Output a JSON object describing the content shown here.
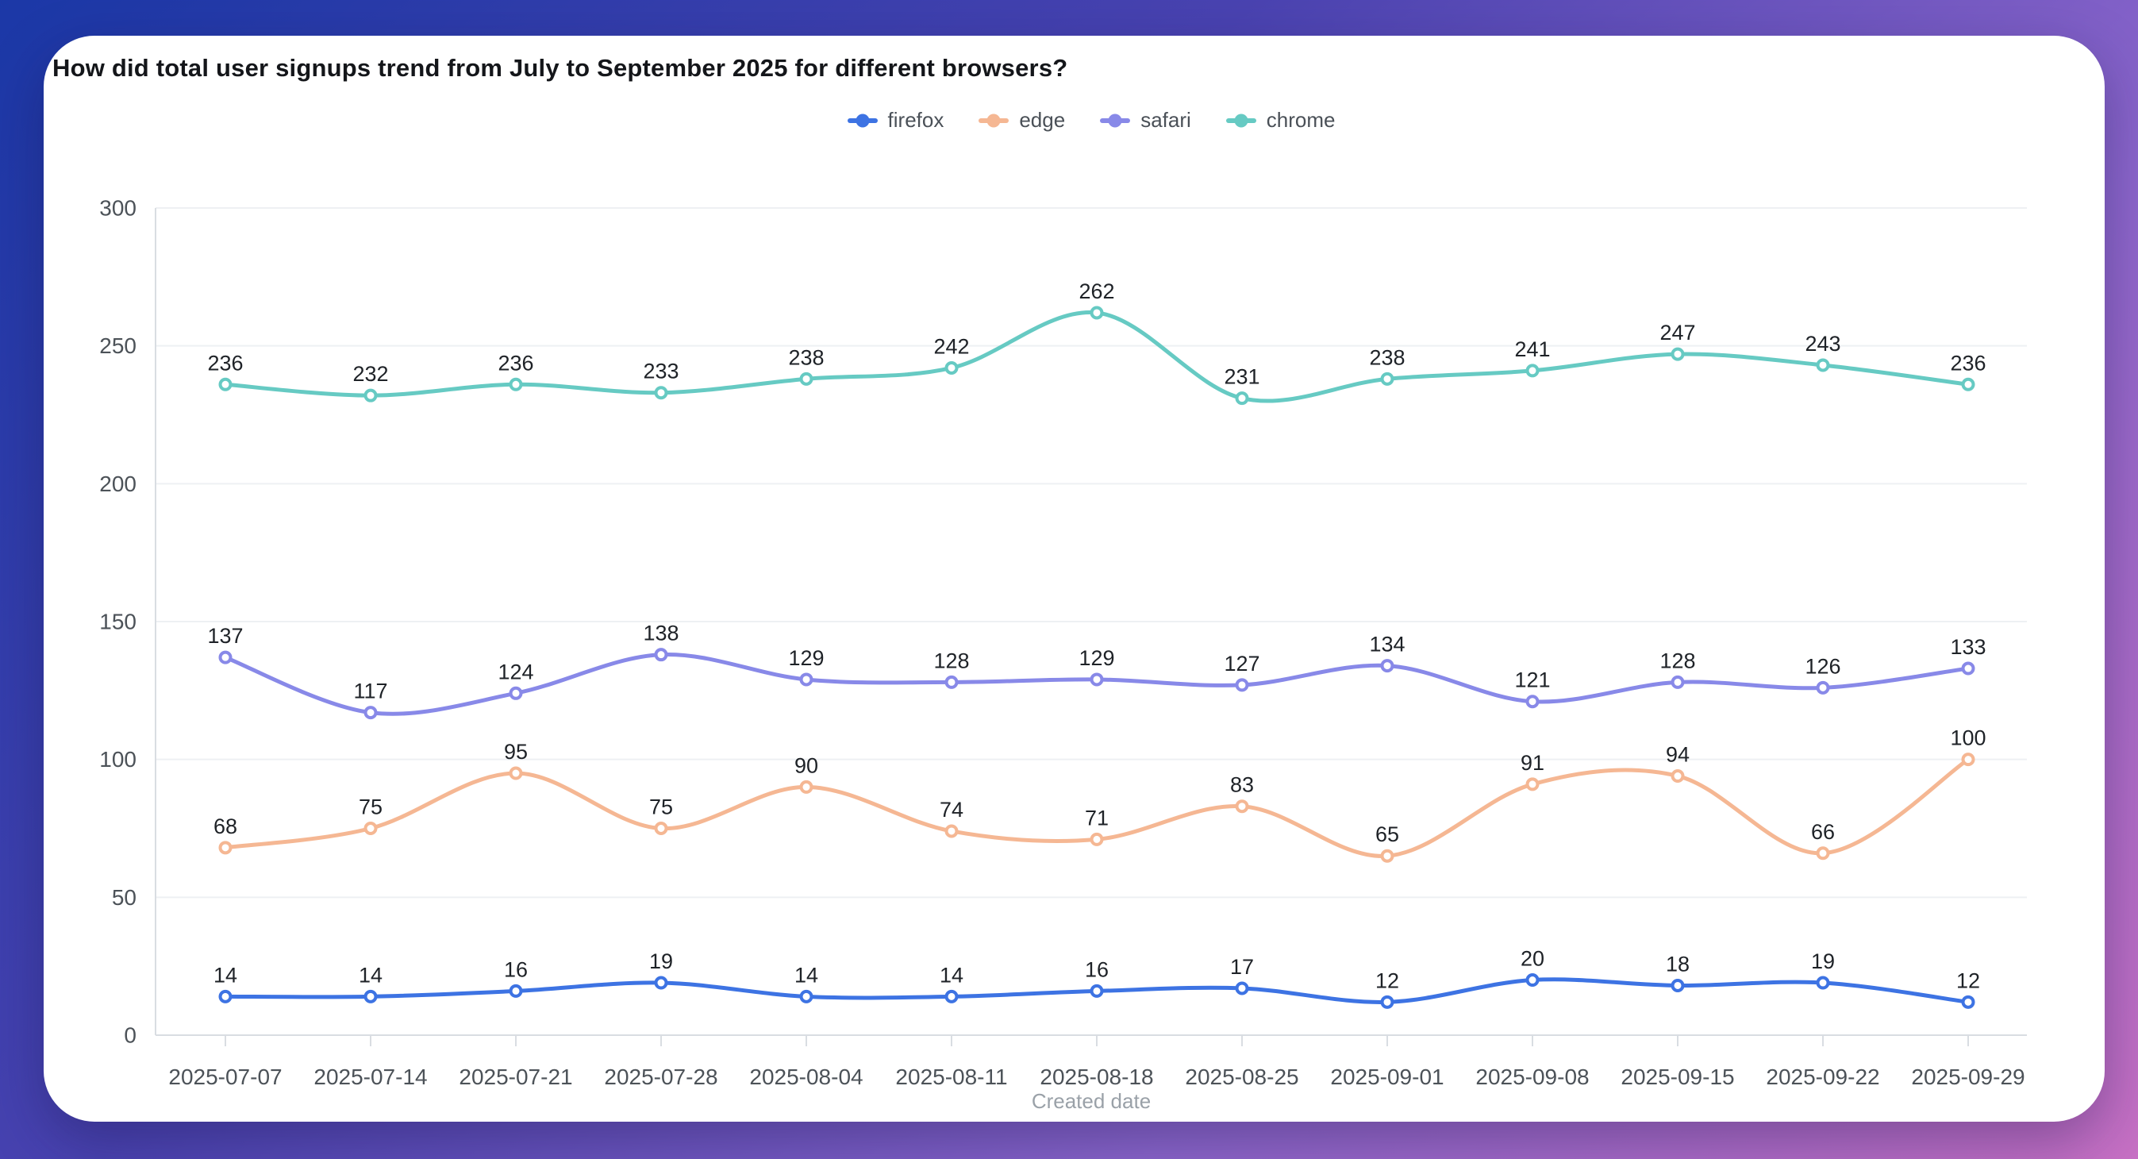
{
  "page": {
    "background_gradient": [
      "#1b38a7",
      "#4a43b1",
      "#8c66cc",
      "#c770c4"
    ],
    "card_color": "#ffffff"
  },
  "header": {
    "title": "How did total user signups trend from July to September 2025 for different browsers?"
  },
  "chart_data": {
    "type": "line",
    "smooth": true,
    "title": "How did total user signups trend from July to September 2025 for different browsers?",
    "x": [
      "2025-07-07",
      "2025-07-14",
      "2025-07-21",
      "2025-07-28",
      "2025-08-04",
      "2025-08-11",
      "2025-08-18",
      "2025-08-25",
      "2025-09-01",
      "2025-09-08",
      "2025-09-15",
      "2025-09-22",
      "2025-09-29"
    ],
    "series": [
      {
        "name": "firefox",
        "color": "#3d73e3",
        "values": [
          14,
          14,
          16,
          19,
          14,
          14,
          16,
          17,
          12,
          20,
          18,
          19,
          12
        ]
      },
      {
        "name": "edge",
        "color": "#f5b793",
        "values": [
          68,
          75,
          95,
          75,
          90,
          74,
          71,
          83,
          65,
          91,
          94,
          66,
          100
        ]
      },
      {
        "name": "safari",
        "color": "#8889e8",
        "values": [
          137,
          117,
          124,
          138,
          129,
          128,
          129,
          127,
          134,
          121,
          128,
          126,
          133
        ]
      },
      {
        "name": "chrome",
        "color": "#66cac3",
        "values": [
          236,
          232,
          236,
          233,
          238,
          242,
          262,
          231,
          238,
          241,
          247,
          243,
          236
        ]
      }
    ],
    "xlabel": "Created date",
    "ylabel": "",
    "ylim": [
      0,
      300
    ],
    "yticks": [
      0,
      50,
      100,
      150,
      200,
      250,
      300
    ],
    "grid": "horizontal",
    "legend_position": "top",
    "point_labels": true,
    "colors": {
      "gridline": "#eef0f3",
      "axis_line": "#d9dde2",
      "tick_label": "#4c5258",
      "data_label": "#1e2227",
      "axis_title": "#9aa1a8"
    }
  }
}
